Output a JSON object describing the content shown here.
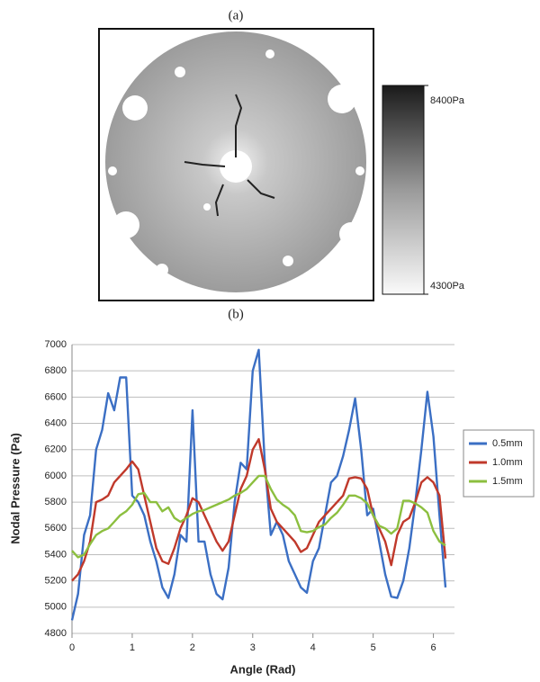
{
  "chart_data": [
    {
      "type": "image-colorbar",
      "title": "(a)",
      "colorbar_lim": [
        4300,
        8400
      ],
      "colorbar_ticks": [
        {
          "value": 8400,
          "label": "8400Pa"
        },
        {
          "value": 4300,
          "label": "4300Pa"
        }
      ]
    },
    {
      "type": "line",
      "title": "(b)",
      "x_label": "Angle (Rad)",
      "y_label": "Nodal Pressure (Pa)",
      "xlim": [
        0,
        6.35
      ],
      "xticks": [
        0,
        1,
        2,
        3,
        4,
        5,
        6
      ],
      "ylim": [
        4800,
        7000
      ],
      "yticks": [
        4800,
        5000,
        5200,
        5400,
        5600,
        5800,
        6000,
        6200,
        6400,
        6600,
        6800,
        7000
      ],
      "grid": true,
      "legend": "right",
      "x": [
        0,
        0.1,
        0.2,
        0.3,
        0.4,
        0.5,
        0.6,
        0.7,
        0.8,
        0.9,
        1,
        1.1,
        1.2,
        1.3,
        1.4,
        1.5,
        1.6,
        1.7,
        1.8,
        1.9,
        2,
        2.1,
        2.2,
        2.3,
        2.4,
        2.5,
        2.6,
        2.7,
        2.8,
        2.9,
        3,
        3.1,
        3.2,
        3.3,
        3.4,
        3.5,
        3.6,
        3.7,
        3.8,
        3.9,
        4,
        4.1,
        4.2,
        4.3,
        4.4,
        4.5,
        4.6,
        4.7,
        4.8,
        4.9,
        5,
        5.1,
        5.2,
        5.3,
        5.4,
        5.5,
        5.6,
        5.7,
        5.8,
        5.9,
        6,
        6.1,
        6.2
      ],
      "series": [
        {
          "name": "0.5mm",
          "color": "#3b6fc4",
          "values": [
            4900,
            5100,
            5550,
            5700,
            6200,
            6350,
            6630,
            6500,
            6750,
            6750,
            5850,
            5800,
            5700,
            5500,
            5350,
            5150,
            5070,
            5250,
            5550,
            5500,
            6500,
            5500,
            5500,
            5250,
            5100,
            5060,
            5300,
            5800,
            6100,
            6050,
            6800,
            6960,
            6100,
            5550,
            5650,
            5550,
            5350,
            5250,
            5150,
            5110,
            5350,
            5450,
            5700,
            5950,
            6000,
            6150,
            6350,
            6590,
            6200,
            5700,
            5750,
            5500,
            5250,
            5080,
            5070,
            5200,
            5450,
            5800,
            6200,
            6640,
            6300,
            5700,
            5150
          ]
        },
        {
          "name": "1.0mm",
          "color": "#c0392b",
          "values": [
            5200,
            5250,
            5350,
            5500,
            5800,
            5820,
            5850,
            5950,
            6000,
            6050,
            6110,
            6050,
            5850,
            5650,
            5450,
            5350,
            5330,
            5450,
            5600,
            5700,
            5830,
            5800,
            5700,
            5600,
            5500,
            5430,
            5500,
            5700,
            5900,
            6000,
            6200,
            6280,
            6050,
            5750,
            5650,
            5600,
            5550,
            5500,
            5420,
            5450,
            5550,
            5650,
            5700,
            5750,
            5800,
            5850,
            5980,
            5990,
            5980,
            5900,
            5700,
            5600,
            5500,
            5320,
            5550,
            5650,
            5680,
            5800,
            5950,
            5990,
            5950,
            5850,
            5370
          ]
        },
        {
          "name": "1.5mm",
          "color": "#8cbf3f",
          "values": [
            5430,
            5380,
            5400,
            5480,
            5550,
            5580,
            5600,
            5650,
            5700,
            5730,
            5780,
            5860,
            5870,
            5800,
            5800,
            5730,
            5760,
            5680,
            5650,
            5680,
            5710,
            5730,
            5740,
            5760,
            5780,
            5800,
            5820,
            5850,
            5870,
            5900,
            5950,
            6000,
            6000,
            5900,
            5820,
            5780,
            5750,
            5700,
            5580,
            5570,
            5580,
            5610,
            5630,
            5680,
            5720,
            5780,
            5850,
            5850,
            5830,
            5790,
            5700,
            5620,
            5600,
            5560,
            5600,
            5810,
            5810,
            5790,
            5760,
            5720,
            5580,
            5500,
            5470
          ]
        }
      ]
    }
  ]
}
